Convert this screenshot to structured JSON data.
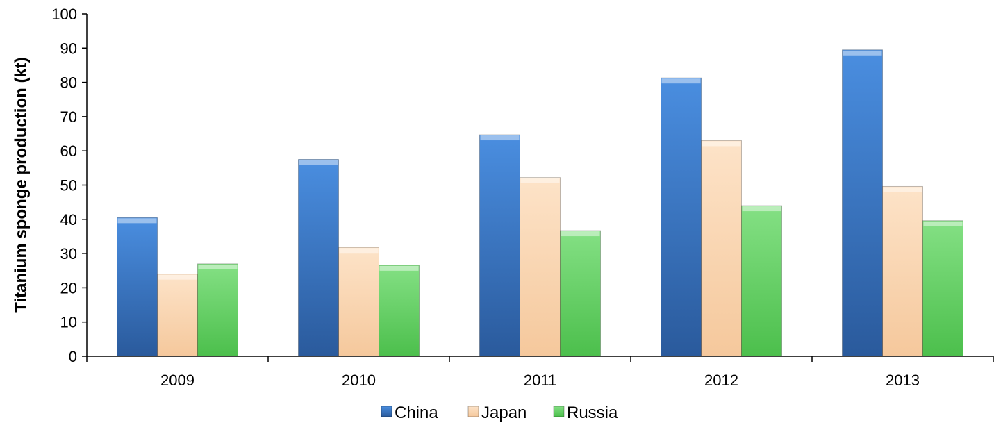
{
  "chart_data": {
    "type": "bar",
    "title": "",
    "xlabel": "",
    "ylabel": "Titanium sponge production (kt)",
    "categories": [
      "2009",
      "2010",
      "2011",
      "2012",
      "2013"
    ],
    "series": [
      {
        "name": "China",
        "values": [
          40.5,
          57.5,
          64.7,
          81.3,
          89.5
        ],
        "color": "#3f7ac9"
      },
      {
        "name": "Japan",
        "values": [
          24.0,
          31.8,
          52.2,
          63.0,
          49.6
        ],
        "color": "#fbd7b5"
      },
      {
        "name": "Russia",
        "values": [
          27.0,
          26.6,
          36.7,
          44.0,
          39.6
        ],
        "color": "#73d873"
      }
    ],
    "ylim": [
      0,
      100
    ],
    "yticks": [
      0,
      10,
      20,
      30,
      40,
      50,
      60,
      70,
      80,
      90,
      100
    ],
    "grid": false,
    "legend_position": "bottom"
  }
}
